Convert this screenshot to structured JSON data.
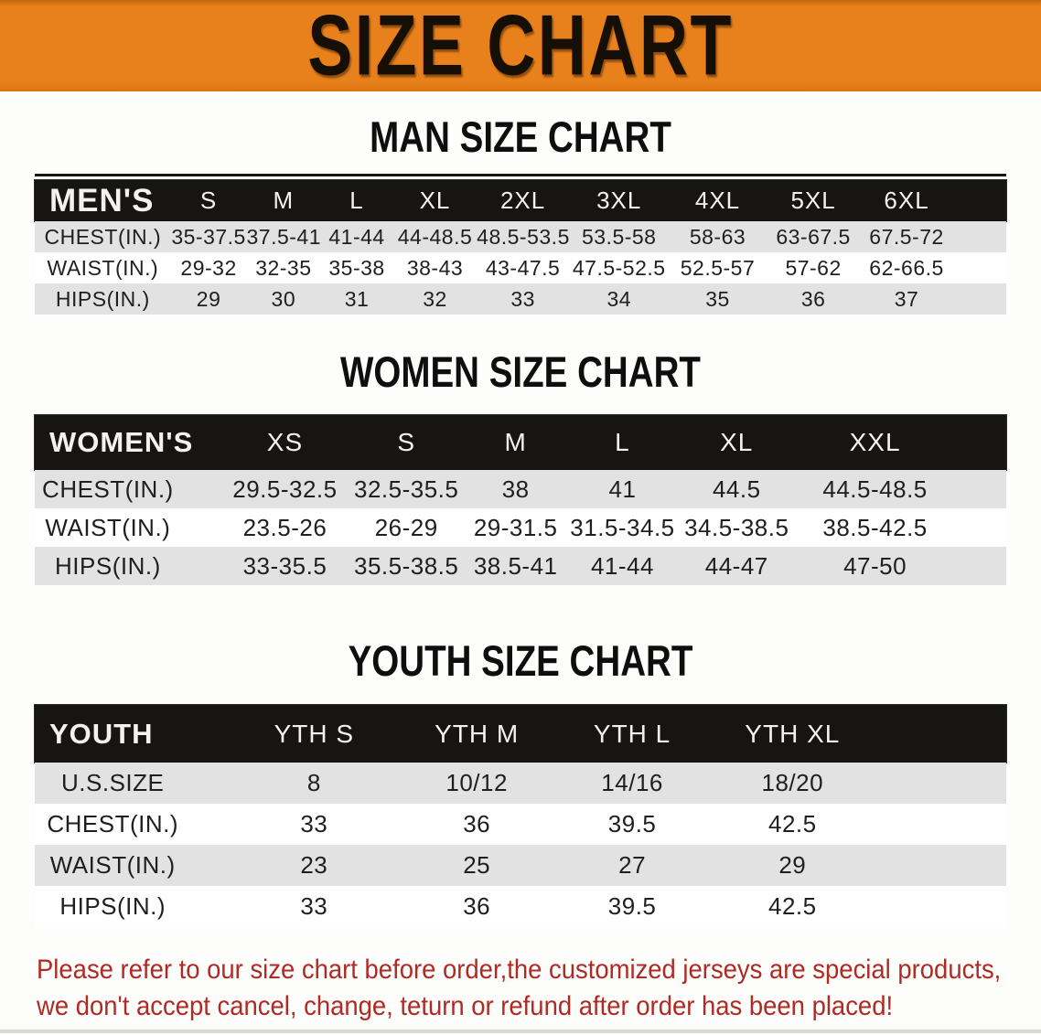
{
  "banner": {
    "title": "SIZE CHART"
  },
  "sections": {
    "men": {
      "title": "MAN SIZE CHART",
      "header_label": "MEN'S",
      "columns": [
        "S",
        "M",
        "L",
        "XL",
        "2XL",
        "3XL",
        "4XL",
        "5XL",
        "6XL"
      ],
      "rows": [
        {
          "label": "CHEST(IN.)",
          "values": [
            "35-37.5",
            "37.5-41",
            "41-44",
            "44-48.5",
            "48.5-53.5",
            "53.5-58",
            "58-63",
            "63-67.5",
            "67.5-72"
          ]
        },
        {
          "label": "WAIST(IN.)",
          "values": [
            "29-32",
            "32-35",
            "35-38",
            "38-43",
            "43-47.5",
            "47.5-52.5",
            "52.5-57",
            "57-62",
            "62-66.5"
          ]
        },
        {
          "label": "HIPS(IN.)",
          "values": [
            "29",
            "30",
            "31",
            "32",
            "33",
            "34",
            "35",
            "36",
            "37"
          ]
        }
      ]
    },
    "women": {
      "title": "WOMEN SIZE CHART",
      "header_label": "WOMEN'S",
      "columns": [
        "XS",
        "S",
        "M",
        "L",
        "XL",
        "XXL"
      ],
      "rows": [
        {
          "label": "CHEST(IN.)",
          "values": [
            "29.5-32.5",
            "32.5-35.5",
            "38",
            "41",
            "44.5",
            "44.5-48.5"
          ]
        },
        {
          "label": "WAIST(IN.)",
          "values": [
            "23.5-26",
            "26-29",
            "29-31.5",
            "31.5-34.5",
            "34.5-38.5",
            "38.5-42.5"
          ]
        },
        {
          "label": "HIPS(IN.)",
          "values": [
            "33-35.5",
            "35.5-38.5",
            "38.5-41",
            "41-44",
            "44-47",
            "47-50"
          ]
        }
      ]
    },
    "youth": {
      "title": "YOUTH SIZE CHART",
      "header_label": "YOUTH",
      "columns": [
        "YTH S",
        "YTH M",
        "YTH L",
        "YTH XL"
      ],
      "rows": [
        {
          "label": "U.S.SIZE",
          "values": [
            "8",
            "10/12",
            "14/16",
            "18/20"
          ]
        },
        {
          "label": "CHEST(IN.)",
          "values": [
            "33",
            "36",
            "39.5",
            "42.5"
          ]
        },
        {
          "label": "WAIST(IN.)",
          "values": [
            "23",
            "25",
            "27",
            "29"
          ]
        },
        {
          "label": "HIPS(IN.)",
          "values": [
            "33",
            "36",
            "39.5",
            "42.5"
          ]
        }
      ]
    }
  },
  "footer": {
    "line1": "Please refer to our size chart before order,the customized jerseys are special products,",
    "line2": "we don't accept cancel, change, teturn or refund after order has been placed!"
  },
  "colors": {
    "banner_bg": "#E8811C",
    "header_bar": "#171514",
    "row_stripe": "#E2E2E2",
    "footer_text": "#B02A24",
    "title_text": "#0E0E0E"
  }
}
